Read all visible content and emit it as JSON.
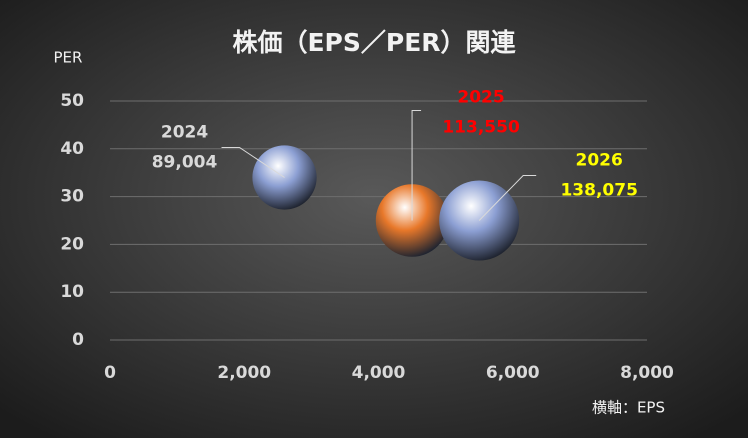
{
  "chart_data": {
    "type": "bubble",
    "title": "株価（EPS／PER）関連",
    "y_label": "PER",
    "x_label": "横軸：EPS",
    "xlim": [
      0,
      8000
    ],
    "xticks": [
      0,
      {
        "value": 2000,
        "label": "2,000"
      },
      {
        "value": 4000,
        "label": "4,000"
      },
      {
        "value": 6000,
        "label": "6,000"
      },
      {
        "value": 8000,
        "label": "8,000"
      }
    ],
    "ylim": [
      0,
      50
    ],
    "yticks": [
      0,
      10,
      20,
      30,
      40,
      50
    ],
    "grid": true,
    "series": [
      {
        "name": "2024",
        "color": "#8c9fd3",
        "label_color": "#d9d9d9",
        "x": [
          2600
        ],
        "values": [
          34
        ],
        "sizes": [
          89004
        ],
        "size_labels": [
          "89,004"
        ]
      },
      {
        "name": "2025",
        "color": "#e8782a",
        "label_color": "#ff0000",
        "x": [
          4500
        ],
        "values": [
          25
        ],
        "sizes": [
          113550
        ],
        "size_labels": [
          "113,550"
        ]
      },
      {
        "name": "2026",
        "color": "#8c9fd3",
        "label_color": "#ffff00",
        "x": [
          5500
        ],
        "values": [
          25
        ],
        "sizes": [
          138075
        ],
        "size_labels": [
          "138,075"
        ]
      }
    ]
  }
}
